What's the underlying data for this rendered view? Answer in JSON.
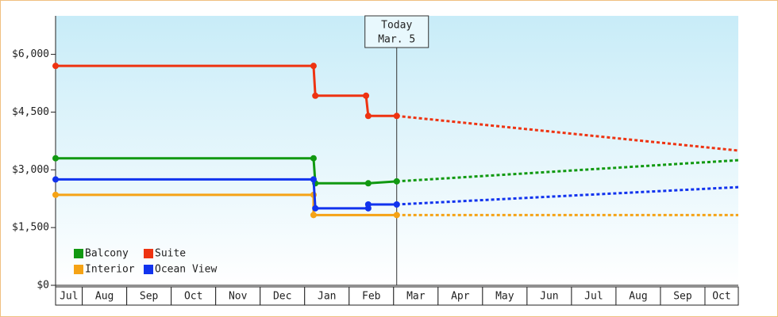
{
  "chart_data": {
    "type": "line",
    "categories": [
      "Jul",
      "Aug",
      "Sep",
      "Oct",
      "Nov",
      "Dec",
      "Jan",
      "Feb",
      "Mar",
      "Apr",
      "May",
      "Jun",
      "Jul",
      "Aug",
      "Sep",
      "Oct"
    ],
    "xlim": [
      0.4,
      15.75
    ],
    "ylim": [
      0,
      7000
    ],
    "yticks": [
      {
        "value": 0,
        "label": "$0"
      },
      {
        "value": 1500,
        "label": "$1,500"
      },
      {
        "value": 3000,
        "label": "$3,000"
      },
      {
        "value": 4500,
        "label": "$4,500"
      },
      {
        "value": 6000,
        "label": "$6,000"
      }
    ],
    "today": {
      "x": 8.07,
      "label": "Today",
      "date": "Mar. 5"
    },
    "series": [
      {
        "name": "Balcony",
        "color": "#119911",
        "x": [
          0.4,
          6.2,
          6.24,
          7.43,
          8.07
        ],
        "values": [
          3300,
          3300,
          2650,
          2650,
          2700
        ],
        "forecast_x": [
          8.07,
          15.75
        ],
        "forecast_values": [
          2700,
          3250
        ]
      },
      {
        "name": "Suite",
        "color": "#ee3311",
        "x": [
          0.4,
          6.2,
          6.24,
          7.38,
          7.43,
          8.07
        ],
        "values": [
          5700,
          5700,
          4925,
          4925,
          4400,
          4400
        ],
        "forecast_x": [
          8.07,
          15.75
        ],
        "forecast_values": [
          4400,
          3500
        ]
      },
      {
        "name": "Interior",
        "color": "#f5a316",
        "x": [
          0.4,
          6.2,
          6.2,
          8.07
        ],
        "values": [
          2350,
          2350,
          1825,
          1825
        ],
        "forecast_x": [
          8.07,
          15.75
        ],
        "forecast_values": [
          1825,
          1825
        ]
      },
      {
        "name": "Ocean View",
        "color": "#1133ee",
        "x": [
          0.4,
          6.2,
          6.24,
          7.43,
          7.43,
          8.07
        ],
        "values": [
          2750,
          2750,
          2000,
          2000,
          2100,
          2100
        ],
        "forecast_x": [
          8.07,
          15.75
        ],
        "forecast_values": [
          2100,
          2550
        ]
      }
    ]
  }
}
